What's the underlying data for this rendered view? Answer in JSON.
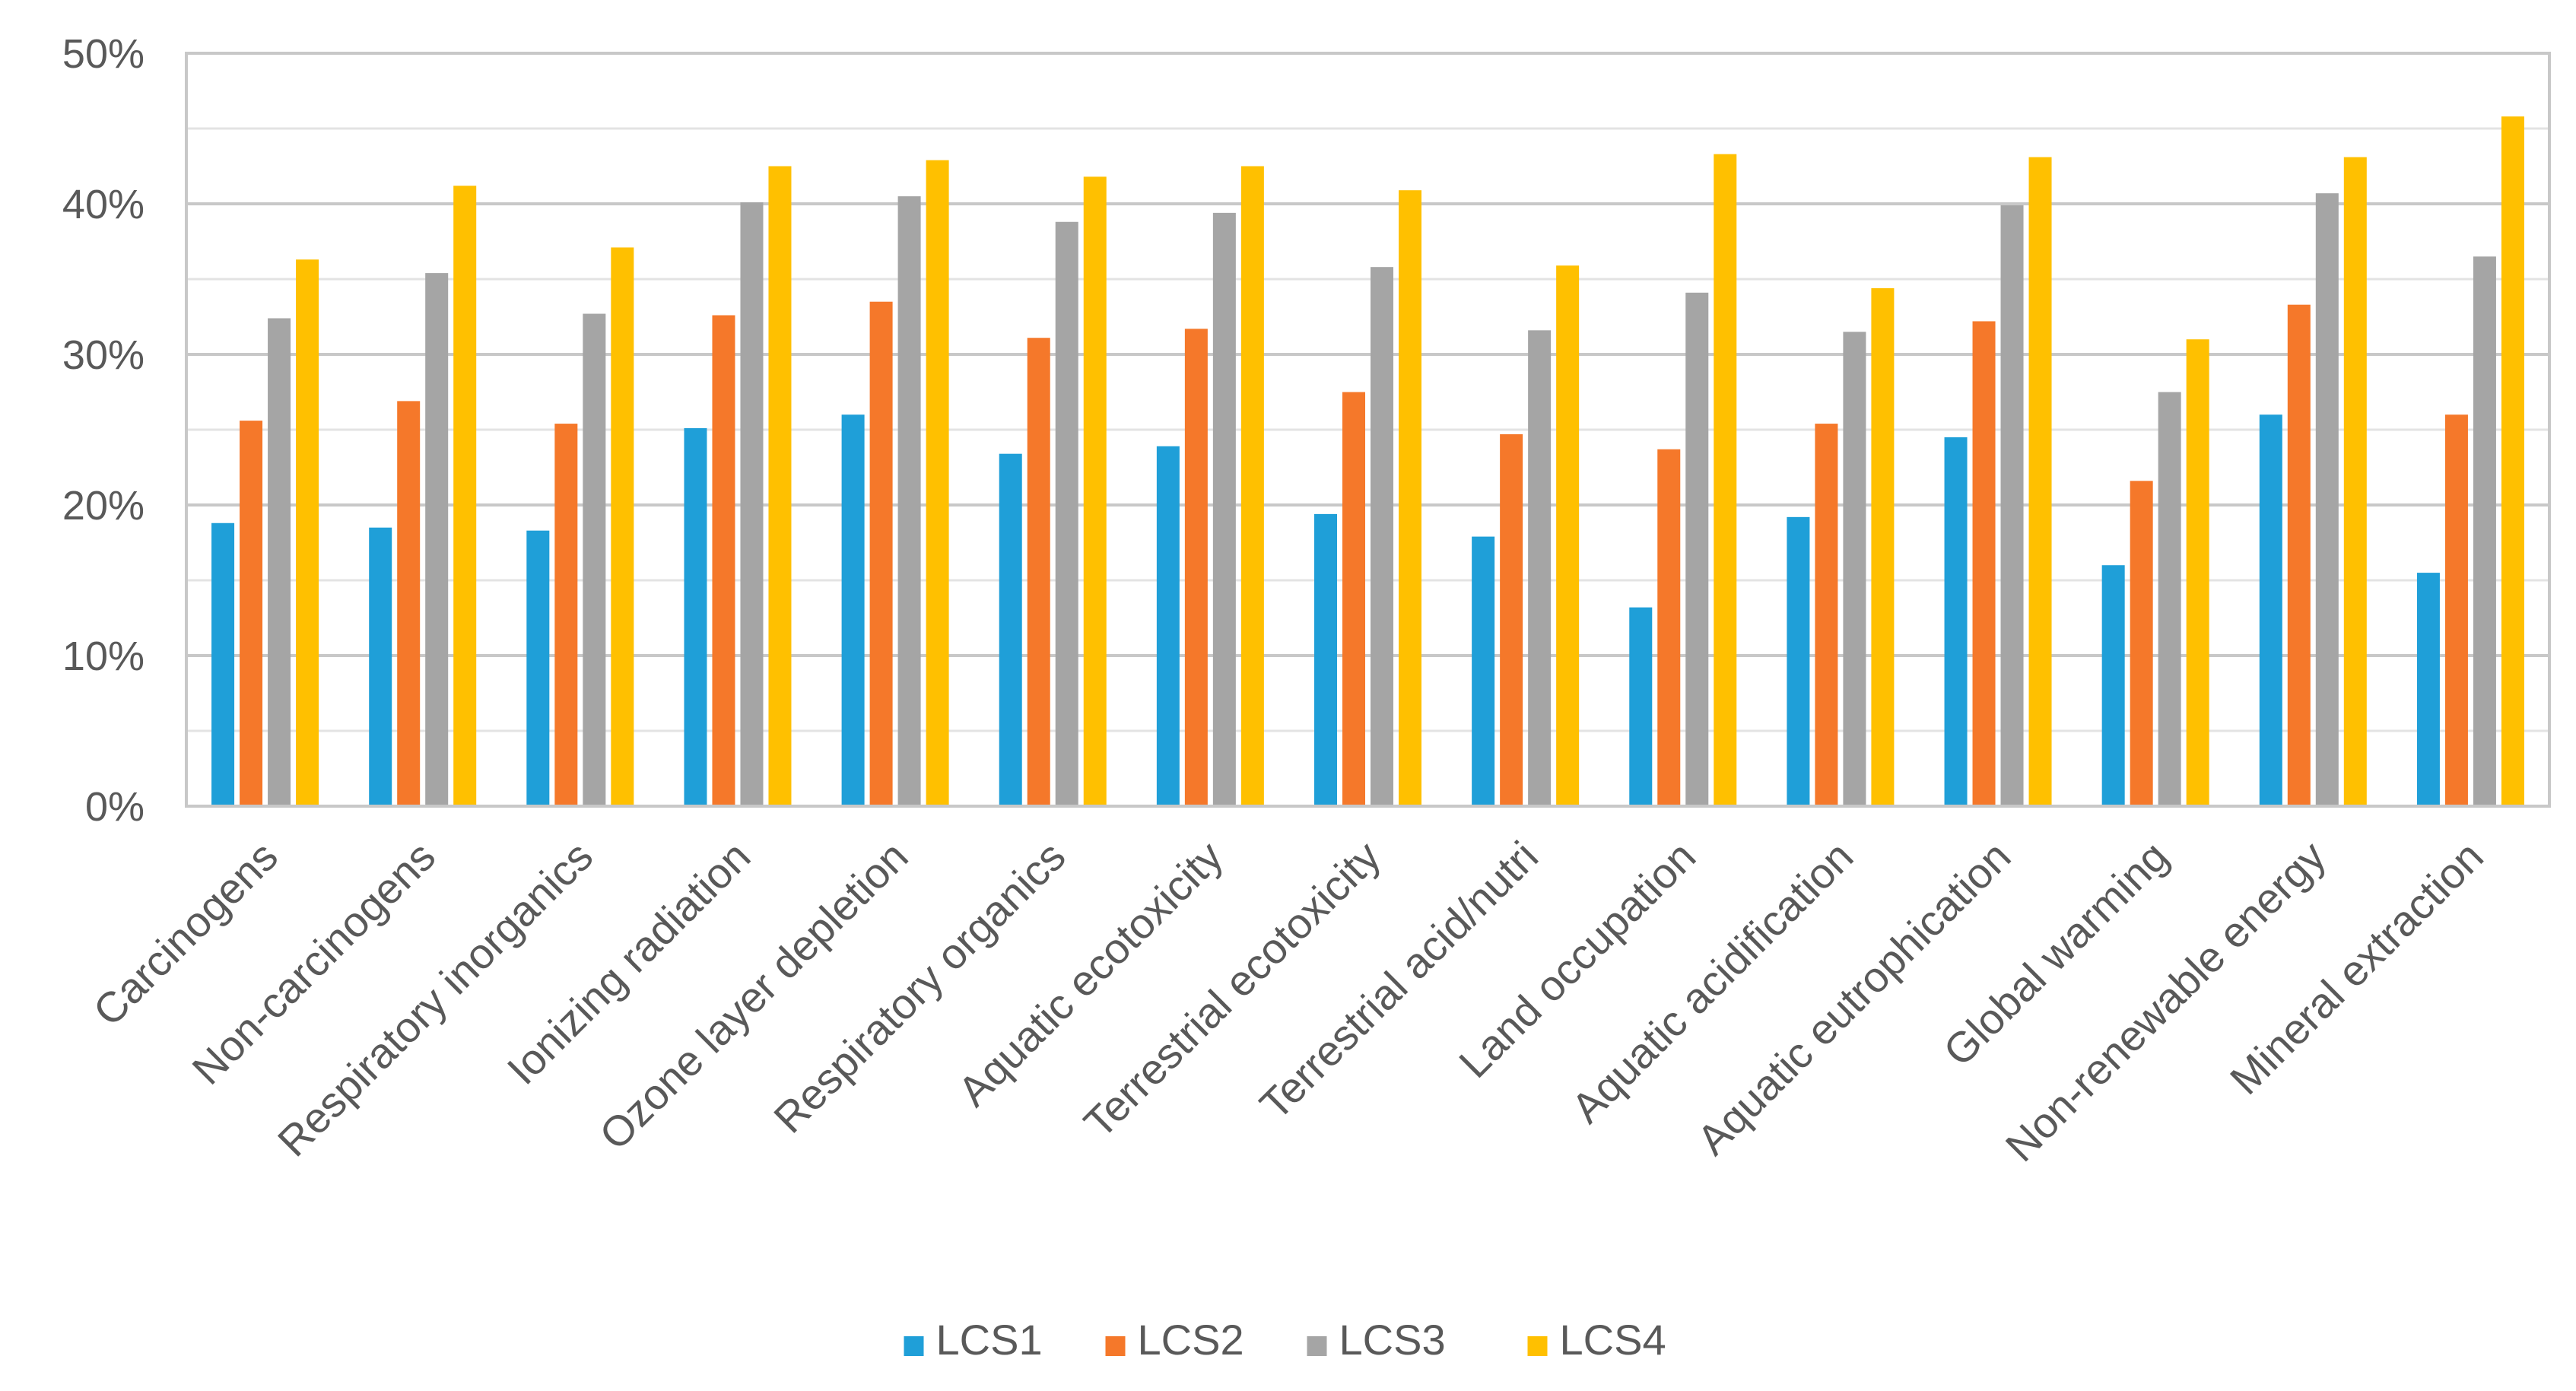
{
  "chart_data": {
    "type": "bar",
    "title": "",
    "xlabel": "",
    "ylabel": "",
    "ylim": [
      0,
      50
    ],
    "y_ticks": [
      {
        "value": 0,
        "label": "0%"
      },
      {
        "value": 10,
        "label": "10%"
      },
      {
        "value": 20,
        "label": "20%"
      },
      {
        "value": 30,
        "label": "30%"
      },
      {
        "value": 40,
        "label": "40%"
      },
      {
        "value": 50,
        "label": "50%"
      }
    ],
    "minor_grid_step": 5,
    "grid": true,
    "legend_position": "bottom",
    "categories": [
      "Carcinogens",
      "Non-carcinogens",
      "Respiratory inorganics",
      "Ionizing radiation",
      "Ozone layer depletion",
      "Respiratory organics",
      "Aquatic ecotoxicity",
      "Terrestrial ecotoxicity",
      "Terrestrial acid/nutri",
      "Land occupation",
      "Aquatic acidification",
      "Aquatic eutrophication",
      "Global warming",
      "Non-renewable energy",
      "Mineral extraction"
    ],
    "series": [
      {
        "name": "LCS1",
        "color": "#1f9fd8",
        "values": [
          18.8,
          18.5,
          18.3,
          25.1,
          26.0,
          23.4,
          23.9,
          19.4,
          17.9,
          13.2,
          19.2,
          24.5,
          16.0,
          26.0,
          15.5
        ]
      },
      {
        "name": "LCS2",
        "color": "#f5782a",
        "values": [
          25.6,
          26.9,
          25.4,
          32.6,
          33.5,
          31.1,
          31.7,
          27.5,
          24.7,
          23.7,
          25.4,
          32.2,
          21.6,
          33.3,
          26.0
        ]
      },
      {
        "name": "LCS3",
        "color": "#a5a5a5",
        "values": [
          32.4,
          35.4,
          32.7,
          40.1,
          40.5,
          38.8,
          39.4,
          35.8,
          31.6,
          34.1,
          31.5,
          39.9,
          27.5,
          40.7,
          36.5
        ]
      },
      {
        "name": "LCS4",
        "color": "#ffc000",
        "values": [
          36.3,
          41.2,
          37.1,
          42.5,
          42.9,
          41.8,
          42.5,
          40.9,
          35.9,
          43.3,
          34.4,
          43.1,
          31.0,
          43.1,
          45.8
        ]
      }
    ]
  }
}
